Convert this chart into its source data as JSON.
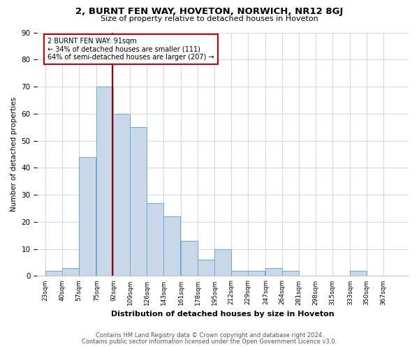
{
  "title": "2, BURNT FEN WAY, HOVETON, NORWICH, NR12 8GJ",
  "subtitle": "Size of property relative to detached houses in Hoveton",
  "xlabel": "Distribution of detached houses by size in Hoveton",
  "ylabel": "Number of detached properties",
  "footnote1": "Contains HM Land Registry data © Crown copyright and database right 2024.",
  "footnote2": "Contains public sector information licensed under the Open Government Licence v3.0.",
  "bin_labels": [
    "23sqm",
    "40sqm",
    "57sqm",
    "75sqm",
    "92sqm",
    "109sqm",
    "126sqm",
    "143sqm",
    "161sqm",
    "178sqm",
    "195sqm",
    "212sqm",
    "229sqm",
    "247sqm",
    "264sqm",
    "281sqm",
    "298sqm",
    "315sqm",
    "333sqm",
    "350sqm",
    "367sqm"
  ],
  "bin_edges": [
    23,
    40,
    57,
    75,
    92,
    109,
    126,
    143,
    161,
    178,
    195,
    212,
    229,
    247,
    264,
    281,
    298,
    315,
    333,
    350,
    367
  ],
  "bar_heights": [
    2,
    3,
    44,
    70,
    60,
    55,
    27,
    22,
    13,
    6,
    10,
    2,
    2,
    3,
    2,
    0,
    0,
    0,
    2,
    0
  ],
  "bar_color": "#c8d8e8",
  "bar_edge_color": "#6aaad4",
  "property_size": 91,
  "vline_color": "#990000",
  "annotation_text": "2 BURNT FEN WAY: 91sqm\n← 34% of detached houses are smaller (111)\n64% of semi-detached houses are larger (207) →",
  "annotation_box_color": "#ffffff",
  "annotation_box_edge": "#cc0000",
  "ylim": [
    0,
    90
  ],
  "yticks": [
    0,
    10,
    20,
    30,
    40,
    50,
    60,
    70,
    80,
    90
  ],
  "background_color": "#ffffff",
  "grid_color": "#ccd9e8"
}
